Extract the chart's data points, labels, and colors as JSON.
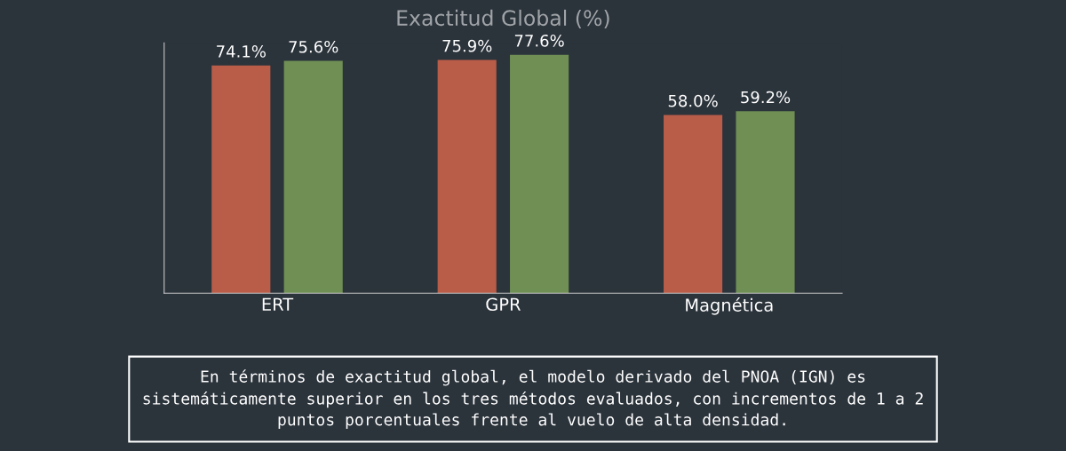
{
  "chart_data": {
    "type": "bar",
    "title": "Exactitud Global (%)",
    "categories": [
      "ERT",
      "GPR",
      "Magnética"
    ],
    "series": [
      {
        "color": "#b95d49",
        "values": [
          74.1,
          75.9,
          58.0
        ],
        "value_labels": [
          "74.1%",
          "75.9%",
          "58.0%"
        ]
      },
      {
        "color": "#6f8f55",
        "values": [
          75.6,
          77.6,
          59.2
        ],
        "value_labels": [
          "75.6%",
          "77.6%",
          "59.2%"
        ]
      }
    ],
    "tick_labels": "x",
    "grid": false,
    "annotations": [
      "En términos de exactitud global, el modelo derivado del PNOA (IGN) es\nsistemáticamente superior en los tres métodos evaluados, con incrementos de 1 a 2\npuntos porcentuales frente al vuelo de alta densidad."
    ]
  }
}
